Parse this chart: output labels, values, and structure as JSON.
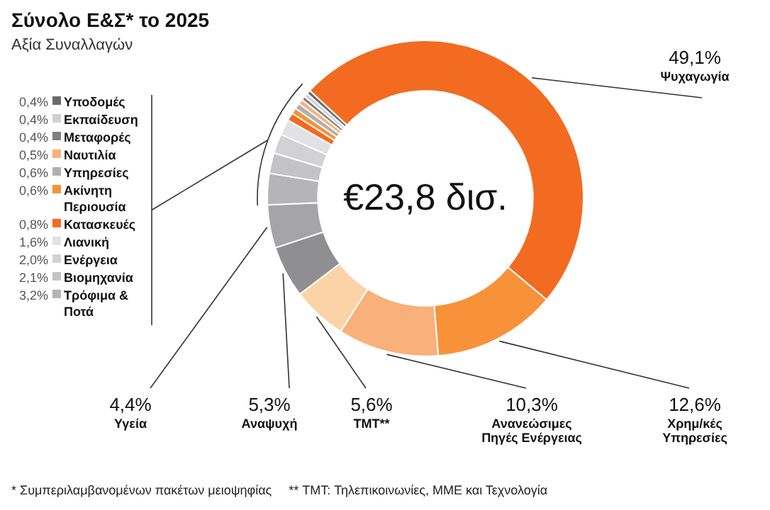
{
  "chart_data": {
    "type": "donut",
    "title": "Σύνολο Ε&Σ* το 2025",
    "subtitle": "Αξία Συναλλαγών",
    "categories": [
      "Ψυχαγωγία",
      "Χρημ/κές Υπηρεσίες",
      "Ανανεώσιμες Πηγές Ενέργειας",
      "TMT**",
      "Αναψυχή",
      "Υγεία",
      "Τρόφιμα & Ποτά",
      "Βιομηχανία",
      "Ενέργεια",
      "Λιανική",
      "Κατασκευές",
      "Ακίνητη Περιουσία",
      "Υπηρεσίες",
      "Ναυτιλία",
      "Μεταφορές",
      "Εκπαίδευση",
      "Υποδομές"
    ],
    "values": [
      49.1,
      12.6,
      10.3,
      5.6,
      5.3,
      4.4,
      3.2,
      2.1,
      2.0,
      1.6,
      0.8,
      0.6,
      0.6,
      0.5,
      0.4,
      0.4,
      0.4
    ],
    "value_labels": [
      "49,1%",
      "12,6%",
      "10,3%",
      "5,6%",
      "5,3%",
      "4,4%",
      "3,2%",
      "2,1%",
      "2,0%",
      "1,6%",
      "0,8%",
      "0,6%",
      "0,6%",
      "0,5%",
      "0,4%",
      "0,4%",
      "0,4%"
    ],
    "colors": [
      "#f26b21",
      "#f7923a",
      "#f9b07a",
      "#fcd3a6",
      "#8f8f91",
      "#a5a5a7",
      "#b5b5b7",
      "#c4c4c6",
      "#d2d2d4",
      "#e2e2e4",
      "#f26b21",
      "#f7923a",
      "#b0b0b2",
      "#f9b07a",
      "#808082",
      "#d0d0d2",
      "#6a6a6c"
    ],
    "annotations": [
      "€23,8 δισ.",
      "* Συμπεριλαμβανομένων πακέτων μειοψηφίας",
      "** TMT: Τηλεπικοινωνίες, ΜΜΕ και Τεχνολογία"
    ],
    "legend": "left"
  }
}
